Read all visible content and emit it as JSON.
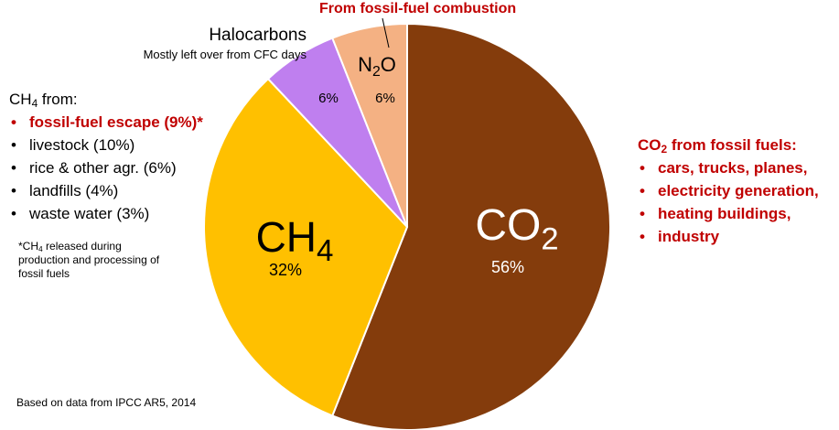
{
  "chart_data": {
    "type": "pie",
    "slices": [
      {
        "formula": "CO",
        "sub": "2",
        "value_label": "56%",
        "value": 56,
        "color": "#843c0c",
        "text_color": "#ffffff"
      },
      {
        "formula": "CH",
        "sub": "4",
        "value_label": "32%",
        "value": 32,
        "color": "#ffc000",
        "text_color": "#000000"
      },
      {
        "formula": "",
        "sub": "",
        "value_label": "6%",
        "value": 6,
        "color": "#bf7fef",
        "text_color": "#000000"
      },
      {
        "formula": "N",
        "sub": "2",
        "formula_tail": "O",
        "value_label": "6%",
        "value": 6,
        "color": "#f4b183",
        "text_color": "#000000"
      }
    ]
  },
  "halocarbons": {
    "title": "Halocarbons",
    "subtitle": "Mostly left over from CFC days"
  },
  "fossil_label": "From fossil-fuel combustion",
  "ch4_panel": {
    "head_main": "CH",
    "head_sub": "4",
    "head_tail": " from:",
    "items": [
      "fossil-fuel escape (9%)*",
      "livestock (10%)",
      "rice & other agr. (6%)",
      "landfills (4%)",
      "waste water (3%)"
    ]
  },
  "footnote": {
    "pre": "*CH",
    "sub": "4",
    "post": " released during production and processing of fossil fuels"
  },
  "source": "Based on data from IPCC AR5, 2014",
  "co2_panel": {
    "head_main": "CO",
    "head_sub": "2",
    "head_tail": " from fossil fuels:",
    "items": [
      "cars, trucks, planes,",
      "electricity generation,",
      "heating buildings,",
      "industry"
    ]
  }
}
